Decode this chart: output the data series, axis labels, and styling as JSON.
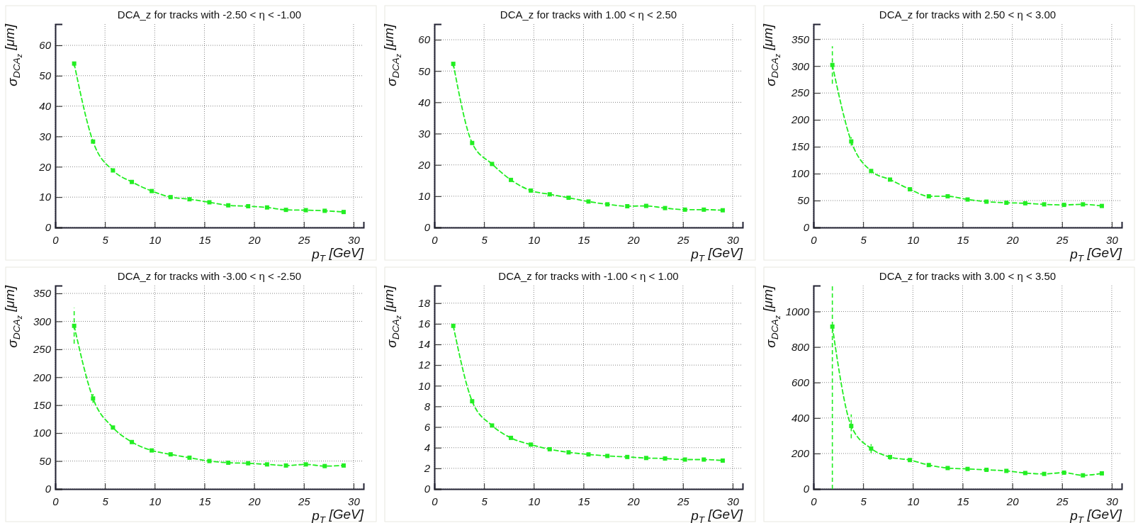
{
  "chart_data": [
    {
      "type": "line",
      "title": "DCA_z for tracks with -2.50 < η < -1.00",
      "xlabel": "p$_{T}$ [GeV]",
      "ylabel": "σ$_{DCA}$$_{z}$ [μm]",
      "xlim": [
        0,
        31
      ],
      "ylim": [
        0,
        67
      ],
      "xticks": [
        0,
        5,
        10,
        15,
        20,
        25,
        30
      ],
      "yticks": [
        0,
        10,
        20,
        30,
        40,
        50,
        60
      ],
      "grid": true,
      "marker": "square",
      "line_style": "dashed",
      "series": [
        {
          "color": "#22ee22",
          "x": [
            1.9,
            3.8,
            5.8,
            7.7,
            9.7,
            11.6,
            13.5,
            15.5,
            17.4,
            19.4,
            21.3,
            23.2,
            25.2,
            27.1,
            29.0
          ],
          "values": [
            54,
            28.3,
            18.8,
            15,
            12,
            10,
            9.3,
            8.3,
            7.3,
            7,
            6.6,
            5.8,
            5.7,
            5.5,
            5.1
          ],
          "errors": [
            1,
            null,
            null,
            null,
            null,
            null,
            null,
            null,
            null,
            null,
            null,
            null,
            null,
            null,
            null
          ]
        }
      ]
    },
    {
      "type": "line",
      "title": "DCA_z for tracks with 1.00 < η < 2.50",
      "xlabel": "p$_{T}$ [GeV]",
      "ylabel": "σ$_{DCA}$$_{z}$ [μm]",
      "xlim": [
        0,
        31
      ],
      "ylim": [
        0,
        65
      ],
      "xticks": [
        0,
        5,
        10,
        15,
        20,
        25,
        30
      ],
      "yticks": [
        0,
        10,
        20,
        30,
        40,
        50,
        60
      ],
      "grid": true,
      "marker": "square",
      "line_style": "dashed",
      "series": [
        {
          "color": "#22ee22",
          "x": [
            1.9,
            3.8,
            5.8,
            7.7,
            9.7,
            11.6,
            13.5,
            15.5,
            17.4,
            19.4,
            21.3,
            23.2,
            25.2,
            27.1,
            29.0
          ],
          "values": [
            52.3,
            27,
            20.3,
            15.2,
            11.8,
            10.6,
            9.5,
            8.3,
            7.4,
            6.8,
            6.9,
            6.2,
            5.7,
            5.7,
            5.5
          ],
          "errors": [
            1,
            null,
            null,
            null,
            null,
            null,
            null,
            null,
            null,
            null,
            null,
            null,
            null,
            null,
            null
          ]
        }
      ]
    },
    {
      "type": "line",
      "title": "DCA_z for tracks with 2.50 < η < 3.00",
      "xlabel": "p$_{T}$ [GeV]",
      "ylabel": "σ$_{DCA}$$_{z}$ [μm]",
      "xlim": [
        0,
        31
      ],
      "ylim": [
        0,
        378
      ],
      "xticks": [
        0,
        5,
        10,
        15,
        20,
        25,
        30
      ],
      "yticks": [
        0,
        50,
        100,
        150,
        200,
        250,
        300,
        350
      ],
      "grid": true,
      "marker": "square",
      "line_style": "dashed",
      "series": [
        {
          "color": "#22ee22",
          "x": [
            1.9,
            3.8,
            5.8,
            7.7,
            9.7,
            11.6,
            13.5,
            15.5,
            17.4,
            19.4,
            21.3,
            23.2,
            25.2,
            27.1,
            29.0
          ],
          "values": [
            302,
            160,
            105,
            89,
            71,
            58,
            58,
            52,
            48,
            46,
            45,
            43,
            42,
            43,
            40
          ],
          "errors": [
            35,
            8,
            null,
            null,
            null,
            null,
            null,
            null,
            null,
            null,
            null,
            null,
            null,
            null,
            null
          ]
        }
      ]
    },
    {
      "type": "line",
      "title": "DCA_z for tracks with -3.00 < η < -2.50",
      "xlabel": "p$_{T}$ [GeV]",
      "ylabel": "σ$_{DCA}$$_{z}$ [μm]",
      "xlim": [
        0,
        31
      ],
      "ylim": [
        0,
        364
      ],
      "xticks": [
        0,
        5,
        10,
        15,
        20,
        25,
        30
      ],
      "yticks": [
        0,
        50,
        100,
        150,
        200,
        250,
        300,
        350
      ],
      "grid": true,
      "marker": "square",
      "line_style": "dashed",
      "series": [
        {
          "color": "#22ee22",
          "x": [
            1.9,
            3.8,
            5.8,
            7.7,
            9.7,
            11.6,
            13.5,
            15.5,
            17.4,
            19.4,
            21.3,
            23.2,
            25.2,
            27.1,
            29.0
          ],
          "values": [
            292,
            162,
            110,
            84,
            69,
            62,
            56,
            50,
            47,
            46,
            44,
            42,
            44,
            41,
            42
          ],
          "errors": [
            32,
            8,
            null,
            null,
            null,
            null,
            null,
            null,
            null,
            null,
            null,
            null,
            null,
            null,
            null
          ]
        }
      ]
    },
    {
      "type": "line",
      "title": "DCA_z for tracks with -1.00 < η < 1.00",
      "xlabel": "p$_{T}$ [GeV]",
      "ylabel": "σ$_{DCA}$$_{z}$ [μm]",
      "xlim": [
        0,
        31
      ],
      "ylim": [
        0,
        19.7
      ],
      "xticks": [
        0,
        5,
        10,
        15,
        20,
        25,
        30
      ],
      "yticks": [
        0,
        2,
        4,
        6,
        8,
        10,
        12,
        14,
        16,
        18
      ],
      "grid": true,
      "marker": "square",
      "line_style": "dashed",
      "series": [
        {
          "color": "#22ee22",
          "x": [
            1.9,
            3.8,
            5.8,
            7.7,
            9.7,
            11.6,
            13.5,
            15.5,
            17.4,
            19.4,
            21.3,
            23.2,
            25.2,
            27.1,
            29.0
          ],
          "values": [
            15.8,
            8.5,
            6.15,
            4.95,
            4.3,
            3.85,
            3.55,
            3.35,
            3.2,
            3.1,
            3.0,
            2.95,
            2.85,
            2.85,
            2.75
          ]
        }
      ]
    },
    {
      "type": "line",
      "title": "DCA_z for tracks with 3.00 < η < 3.50",
      "xlabel": "p$_{T}$ [GeV]",
      "ylabel": "σ$_{DCA}$$_{z}$ [μm]",
      "xlim": [
        0,
        31
      ],
      "ylim": [
        0,
        1146
      ],
      "xticks": [
        0,
        5,
        10,
        15,
        20,
        25,
        30
      ],
      "yticks": [
        0,
        200,
        400,
        600,
        800,
        1000
      ],
      "grid": true,
      "marker": "square",
      "line_style": "dashed",
      "series": [
        {
          "color": "#22ee22",
          "x": [
            1.9,
            3.8,
            5.8,
            7.7,
            9.7,
            11.6,
            13.5,
            15.5,
            17.4,
            19.4,
            21.3,
            23.2,
            25.2,
            27.1,
            29.0
          ],
          "values": [
            915,
            355,
            228,
            180,
            163,
            135,
            118,
            113,
            108,
            102,
            90,
            85,
            92,
            77,
            88
          ],
          "errors": [
            [
              0,
              1146
            ],
            [
              286,
              420
            ],
            25,
            15,
            null,
            null,
            null,
            null,
            null,
            null,
            null,
            null,
            null,
            null,
            null
          ]
        }
      ]
    }
  ]
}
